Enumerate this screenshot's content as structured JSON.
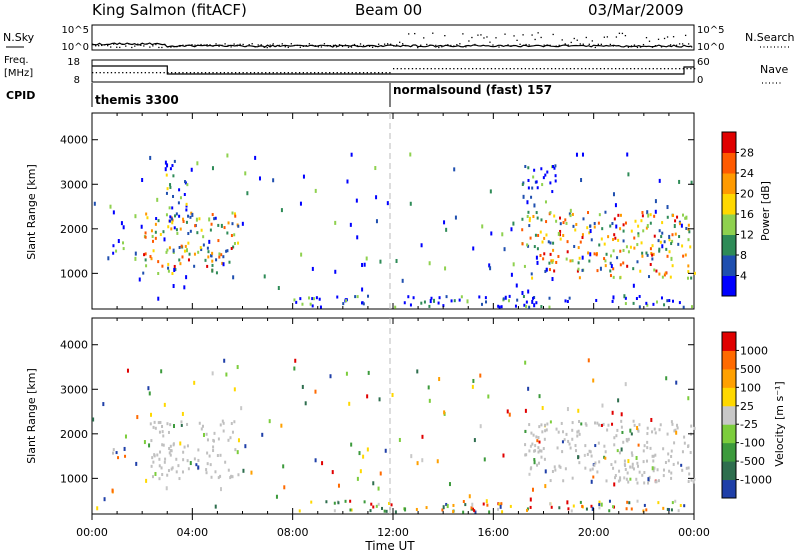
{
  "header": {
    "station": "King Salmon (fitACF)",
    "beam": "Beam 00",
    "date": "03/Mar/2009"
  },
  "left_labels": {
    "nsky": "N.Sky",
    "freq_line1": "Freq.",
    "freq_line2": "[MHz]",
    "cpid": "CPID"
  },
  "right_labels": {
    "nsearch": "N.Search",
    "nave": "Nave"
  },
  "status_axes": {
    "noise_left": [
      "10^5",
      "10^0"
    ],
    "noise_right": [
      "10^5",
      "10^0"
    ],
    "freq_left": [
      "18",
      "8"
    ],
    "nave_right": [
      "60",
      "0"
    ]
  },
  "cpid": {
    "segment_1": "themis 3300",
    "segment_2": "normalsound (fast) 157"
  },
  "x_axis": {
    "ticks": [
      "00:00",
      "04:00",
      "08:00",
      "12:00",
      "16:00",
      "20:00",
      "00:00"
    ],
    "label": "Time UT",
    "range_hours": [
      0,
      24
    ]
  },
  "chart_data": [
    {
      "type": "heatmap",
      "panel": "power",
      "ylabel": "Slant Range [km]",
      "yticks": [
        "1000",
        "2000",
        "3000",
        "4000"
      ],
      "ylim": [
        200,
        4600
      ],
      "xlim_hours": [
        0,
        24
      ],
      "colorbar": {
        "label": "Power [dB]",
        "ticks": [
          "4",
          "8",
          "12",
          "16",
          "20",
          "24",
          "28"
        ],
        "range": [
          0,
          30
        ]
      },
      "echo_regions": [
        {
          "t_start": 0.7,
          "t_end": 1.3,
          "range_low": 1400,
          "range_high": 1800,
          "level": 0.15
        },
        {
          "t_start": 2.0,
          "t_end": 5.8,
          "range_low": 1000,
          "range_high": 2400,
          "level": 0.5
        },
        {
          "t_start": 2.9,
          "t_end": 3.8,
          "range_low": 2000,
          "range_high": 3600,
          "level": 0.15
        },
        {
          "t_start": 17.1,
          "t_end": 24.0,
          "range_low": 900,
          "range_high": 2400,
          "level": 0.55
        },
        {
          "t_start": 17.0,
          "t_end": 18.5,
          "range_low": 2600,
          "range_high": 3500,
          "level": 0.1
        },
        {
          "t_start": 8.0,
          "t_end": 24.0,
          "range_low": 250,
          "range_high": 500,
          "level": 0.1
        }
      ]
    },
    {
      "type": "heatmap",
      "panel": "velocity",
      "ylabel": "Slant Range [km]",
      "yticks": [
        "1000",
        "2000",
        "3000",
        "4000"
      ],
      "ylim": [
        200,
        4600
      ],
      "xlim_hours": [
        0,
        24
      ],
      "colorbar": {
        "label": "Velocity [m s⁻¹]",
        "ticks": [
          "1000",
          "500",
          "100",
          "25",
          "-25",
          "-100",
          "-500",
          "-1000"
        ]
      },
      "echo_regions": [
        {
          "t_start": 0.7,
          "t_end": 1.3,
          "range_low": 1400,
          "range_high": 1700,
          "class": "ground"
        },
        {
          "t_start": 2.3,
          "t_end": 5.8,
          "range_low": 1000,
          "range_high": 2300,
          "class": "ground"
        },
        {
          "t_start": 17.2,
          "t_end": 24.0,
          "range_low": 900,
          "range_high": 2300,
          "class": "ground"
        },
        {
          "t_start": 8.0,
          "t_end": 24.0,
          "range_low": 250,
          "range_high": 500,
          "class": "ionospheric"
        }
      ]
    }
  ],
  "colors": {
    "power_scale": [
      "#0000ff",
      "#1f4faf",
      "#2e8b57",
      "#8fd14f",
      "#ffd800",
      "#ff9a00",
      "#ff5a00",
      "#e00000"
    ],
    "velocity_scale": [
      "#1f3fa8",
      "#2e6e4e",
      "#3c9a3c",
      "#7ccd3c",
      "#c8c8c8",
      "#ffd800",
      "#ffa000",
      "#ff6a00",
      "#e00000"
    ],
    "ground_scatter": "#c0c0c0"
  }
}
